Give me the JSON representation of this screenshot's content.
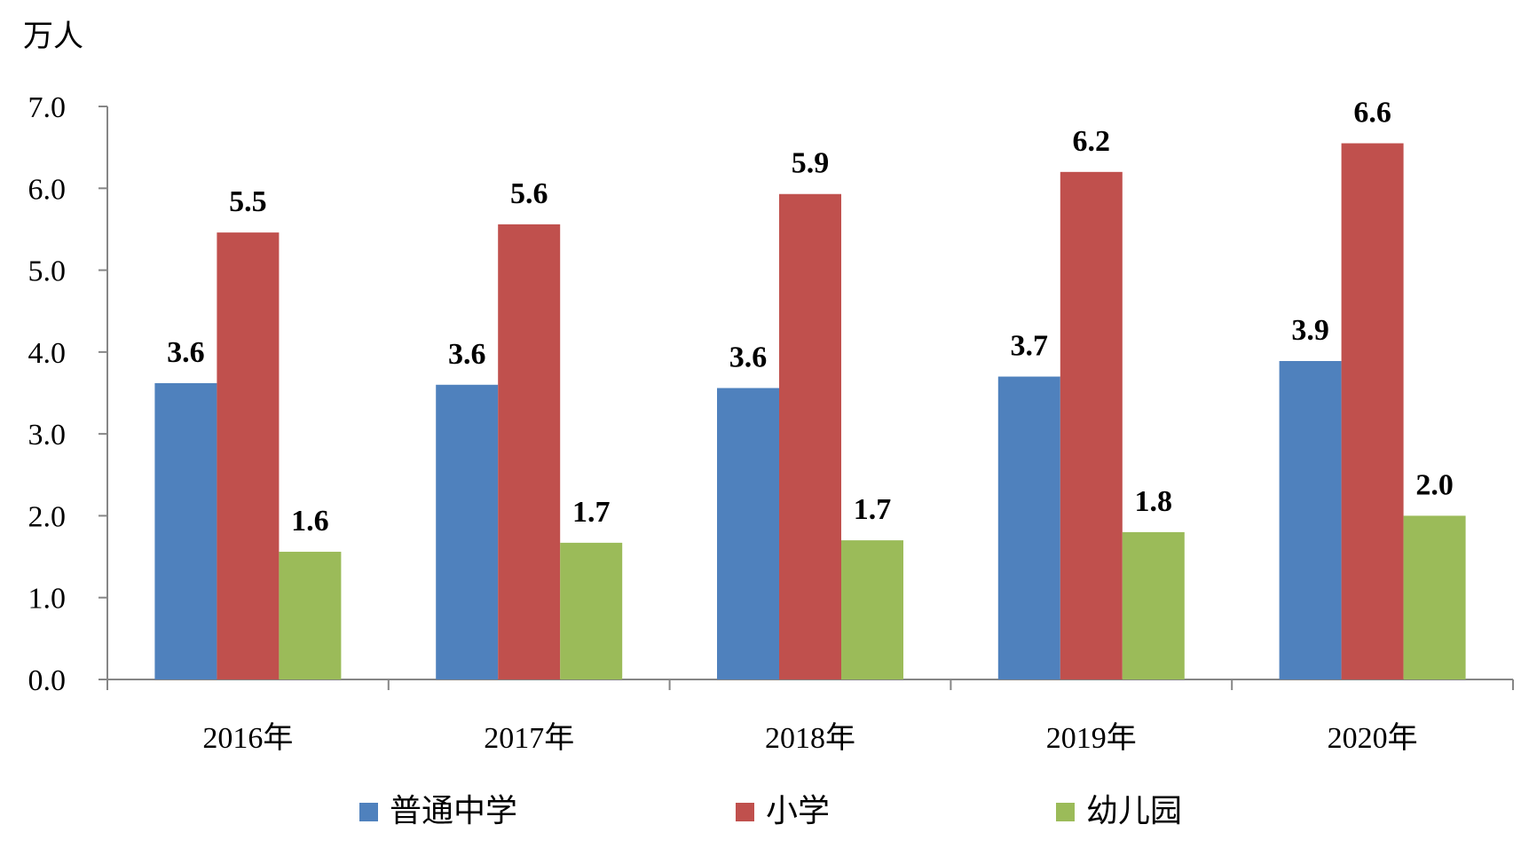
{
  "chart_data": {
    "type": "bar",
    "unit_label": "万人",
    "categories": [
      "2016年",
      "2017年",
      "2018年",
      "2019年",
      "2020年"
    ],
    "series": [
      {
        "name": "普通中学",
        "color": "#4F81BD",
        "values": [
          3.62,
          3.6,
          3.56,
          3.7,
          3.89
        ],
        "labels": [
          "3.6",
          "3.6",
          "3.6",
          "3.7",
          "3.9"
        ]
      },
      {
        "name": "小学",
        "color": "#C0504D",
        "values": [
          5.46,
          5.56,
          5.93,
          6.2,
          6.55
        ],
        "labels": [
          "5.5",
          "5.6",
          "5.9",
          "6.2",
          "6.6"
        ]
      },
      {
        "name": "幼儿园",
        "color": "#9BBB59",
        "values": [
          1.56,
          1.67,
          1.7,
          1.8,
          2.0
        ],
        "labels": [
          "1.6",
          "1.7",
          "1.7",
          "1.8",
          "2.0"
        ]
      }
    ],
    "ylim": [
      0,
      7
    ],
    "yticks": [
      "0.0",
      "1.0",
      "2.0",
      "3.0",
      "4.0",
      "5.0",
      "6.0",
      "7.0"
    ],
    "grid": false,
    "legend_position": "bottom"
  }
}
